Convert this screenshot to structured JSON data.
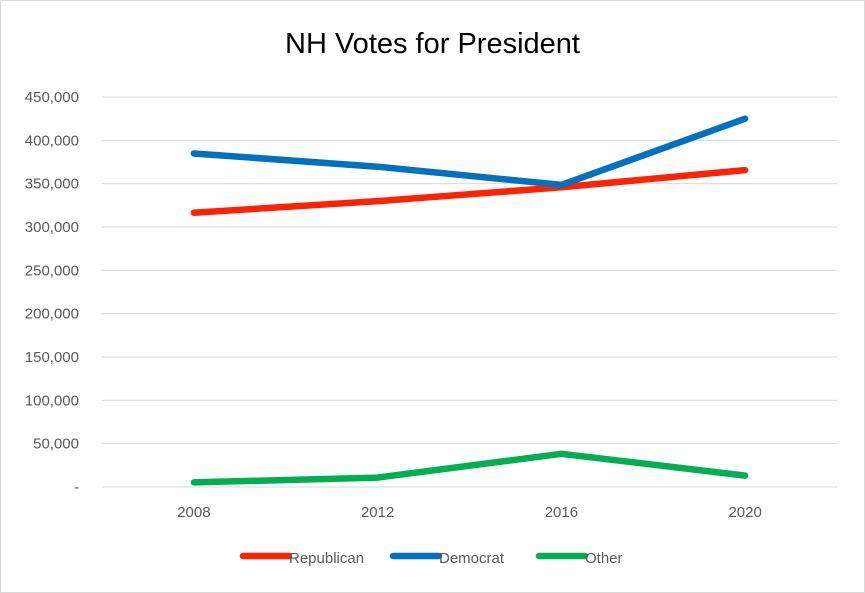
{
  "chart_data": {
    "type": "line",
    "title": "NH Votes for President",
    "xlabel": "",
    "ylabel": "",
    "categories": [
      "2008",
      "2012",
      "2016",
      "2020"
    ],
    "ylim": [
      0,
      450000
    ],
    "y_ticks": [
      0,
      50000,
      100000,
      150000,
      200000,
      250000,
      300000,
      350000,
      400000,
      450000
    ],
    "y_tick_labels": [
      "-",
      "50,000",
      "100,000",
      "150,000",
      "200,000",
      "250,000",
      "300,000",
      "350,000",
      "400,000",
      "450,000"
    ],
    "grid": true,
    "legend_position": "bottom",
    "series": [
      {
        "name": "Republican",
        "color": "#ff2200",
        "values": [
          316534,
          329918,
          345790,
          365660
        ]
      },
      {
        "name": "Democrat",
        "color": "#0070c0",
        "values": [
          384826,
          369561,
          348526,
          424937
        ]
      },
      {
        "name": "Other",
        "color": "#00b050",
        "values": [
          5300,
          10800,
          38300,
          13200
        ]
      }
    ]
  }
}
